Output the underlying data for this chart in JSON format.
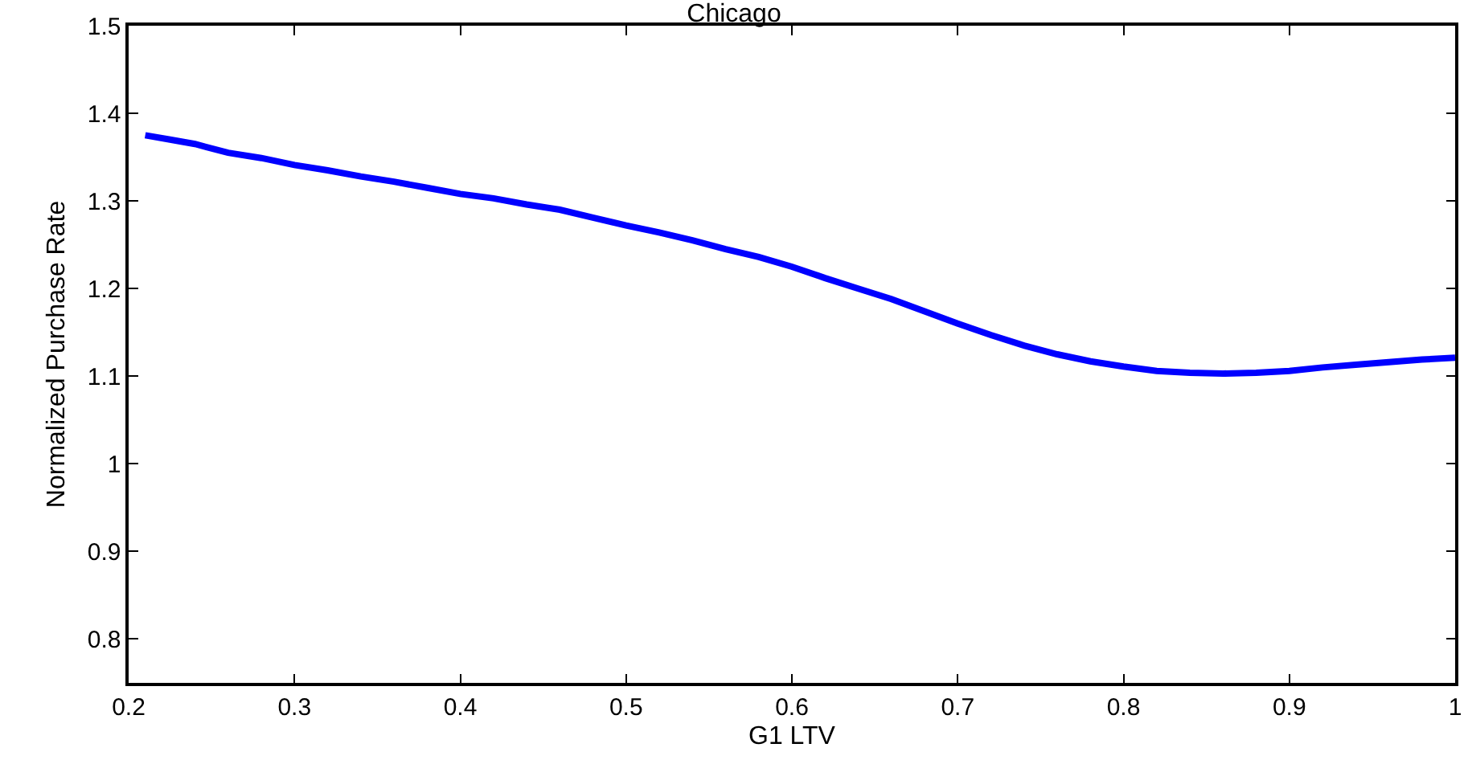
{
  "chart_data": {
    "type": "line",
    "title": "Chicago",
    "xlabel": "G1 LTV",
    "ylabel": "Normalized Purchase Rate",
    "x": [
      0.21,
      0.225,
      0.24,
      0.26,
      0.28,
      0.3,
      0.32,
      0.34,
      0.36,
      0.38,
      0.4,
      0.42,
      0.44,
      0.46,
      0.48,
      0.5,
      0.52,
      0.54,
      0.56,
      0.58,
      0.6,
      0.62,
      0.64,
      0.66,
      0.68,
      0.7,
      0.72,
      0.74,
      0.76,
      0.78,
      0.8,
      0.82,
      0.84,
      0.86,
      0.88,
      0.9,
      0.92,
      0.94,
      0.96,
      0.98,
      1.0
    ],
    "series": [
      {
        "color": "#0000ff",
        "values": [
          1.375,
          1.37,
          1.365,
          1.355,
          1.349,
          1.341,
          1.335,
          1.328,
          1.322,
          1.315,
          1.308,
          1.303,
          1.296,
          1.29,
          1.281,
          1.272,
          1.264,
          1.255,
          1.245,
          1.236,
          1.225,
          1.212,
          1.2,
          1.188,
          1.174,
          1.16,
          1.147,
          1.135,
          1.125,
          1.117,
          1.111,
          1.106,
          1.104,
          1.103,
          1.104,
          1.106,
          1.11,
          1.113,
          1.116,
          1.119,
          1.121
        ]
      }
    ],
    "xlim": [
      0.2,
      1
    ],
    "xticks": [
      0.2,
      0.3,
      0.4,
      0.5,
      0.6,
      0.7,
      0.8,
      0.9,
      1
    ],
    "ylim": [
      0.75,
      1.5
    ],
    "yticks": [
      0.8,
      0.9,
      1,
      1.1,
      1.2,
      1.3,
      1.4,
      1.5
    ],
    "line_style": "solid"
  }
}
